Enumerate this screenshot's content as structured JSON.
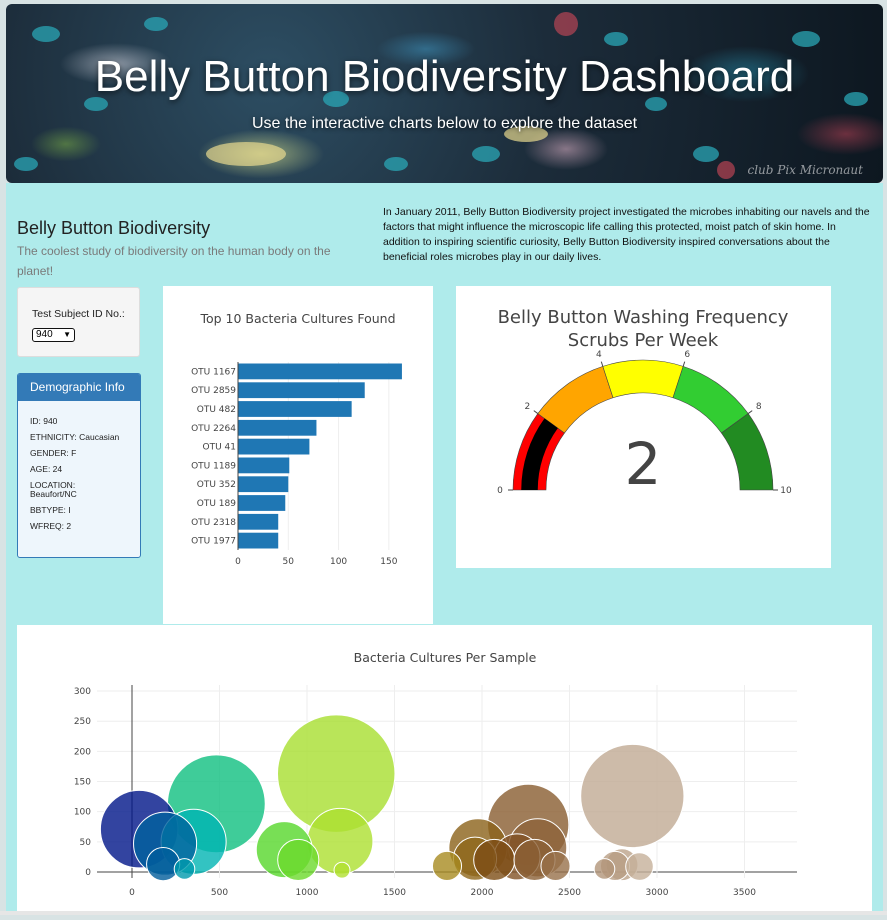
{
  "hero": {
    "title": "Belly Button Biodiversity Dashboard",
    "subtitle": "Use the interactive charts below to explore the dataset",
    "watermark": "club Pix   Micronaut"
  },
  "about": {
    "title": "Belly Button Biodiversity",
    "subtitle": "The coolest study of biodiversity on the human body on the planet!",
    "text": "In January 2011, Belly Button Biodiversity project investigated the microbes inhabiting our navels and the factors that might influence the microscopic life calling this protected, moist patch of skin home. In addition to inspiring scientific curiosity, Belly Button Biodiversity inspired conversations about the beneficial roles microbes play in our daily lives."
  },
  "selector": {
    "label": "Test Subject ID No.:",
    "value": "940"
  },
  "demographic": {
    "header": "Demographic Info",
    "rows": [
      "ID: 940",
      "ETHNICITY: Caucasian",
      "GENDER: F",
      "AGE: 24",
      "LOCATION: Beaufort/NC",
      "BBTYPE: I",
      "WFREQ: 2"
    ]
  },
  "colors": {
    "bar": "#1f77b4",
    "demo_header": "#337ab7",
    "page_bg": "#afebeb"
  },
  "chart_data": [
    {
      "type": "bar",
      "orientation": "horizontal",
      "title": "Top 10 Bacteria Cultures Found",
      "categories": [
        "OTU 1167",
        "OTU 2859",
        "OTU 482",
        "OTU 2264",
        "OTU 41",
        "OTU 1189",
        "OTU 352",
        "OTU 189",
        "OTU 2318",
        "OTU 1977"
      ],
      "values": [
        163,
        126,
        113,
        78,
        71,
        51,
        50,
        47,
        40,
        40
      ],
      "xticks": [
        "0",
        "50",
        "100",
        "150"
      ],
      "xlim": [
        0,
        175
      ],
      "color": "#1f77b4"
    },
    {
      "type": "gauge",
      "title_lines": [
        "Belly Button Washing Frequency",
        "Scrubs Per Week"
      ],
      "value": 2,
      "display_value": "2",
      "range": [
        0,
        10
      ],
      "tick_labels": [
        "0",
        "2",
        "4",
        "6",
        "8",
        "10"
      ],
      "steps": [
        {
          "range": [
            0,
            2
          ],
          "color": "red"
        },
        {
          "range": [
            2,
            4
          ],
          "color": "orange"
        },
        {
          "range": [
            4,
            6
          ],
          "color": "yellow"
        },
        {
          "range": [
            6,
            8
          ],
          "color": "limegreen"
        },
        {
          "range": [
            8,
            10
          ],
          "color": "forestgreen"
        }
      ],
      "bar_color": "black"
    },
    {
      "type": "scatter",
      "subtype": "bubble",
      "title": "Bacteria Cultures Per Sample",
      "xlim": [
        -200,
        3800
      ],
      "ylim": [
        -10,
        310
      ],
      "xticks": [
        "0",
        "500",
        "1000",
        "1500",
        "2000",
        "2500",
        "3000",
        "3500"
      ],
      "yticks": [
        "0",
        "50",
        "100",
        "150",
        "200",
        "250",
        "300"
      ],
      "colorscale": "Earth",
      "points": [
        {
          "x": 41,
          "y": 71
        },
        {
          "x": 189,
          "y": 47
        },
        {
          "x": 352,
          "y": 50
        },
        {
          "x": 482,
          "y": 113
        },
        {
          "x": 178,
          "y": 13
        },
        {
          "x": 300,
          "y": 5
        },
        {
          "x": 870,
          "y": 37
        },
        {
          "x": 950,
          "y": 20
        },
        {
          "x": 1167,
          "y": 163
        },
        {
          "x": 1189,
          "y": 51
        },
        {
          "x": 1200,
          "y": 3
        },
        {
          "x": 1800,
          "y": 10
        },
        {
          "x": 1977,
          "y": 40
        },
        {
          "x": 1960,
          "y": 22
        },
        {
          "x": 2070,
          "y": 20
        },
        {
          "x": 2264,
          "y": 78
        },
        {
          "x": 2200,
          "y": 25
        },
        {
          "x": 2318,
          "y": 40
        },
        {
          "x": 2300,
          "y": 20
        },
        {
          "x": 2420,
          "y": 10
        },
        {
          "x": 2859,
          "y": 126
        },
        {
          "x": 2760,
          "y": 10
        },
        {
          "x": 2800,
          "y": 12
        },
        {
          "x": 2900,
          "y": 9
        },
        {
          "x": 2700,
          "y": 5
        }
      ]
    }
  ]
}
